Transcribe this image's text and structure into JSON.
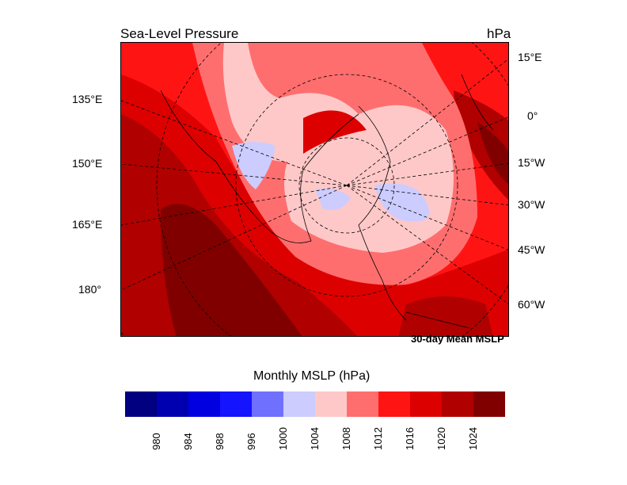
{
  "title_left": "Sea-Level Pressure",
  "title_right": "hPa",
  "annotation": "30-day Mean MSLP",
  "left_lon_labels": [
    "135°E",
    "150°E",
    "165°E",
    "180°"
  ],
  "right_lon_labels": [
    "15°E",
    "0°",
    "15°W",
    "30°W",
    "45°W",
    "60°W"
  ],
  "colorbar": {
    "title": "Monthly MSLP (hPa)",
    "labels": [
      "980",
      "984",
      "988",
      "996",
      "1000",
      "1004",
      "1008",
      "1012",
      "1016",
      "1020",
      "1024"
    ],
    "colors": [
      "#000080",
      "#0000b0",
      "#0000e0",
      "#1414ff",
      "#7070ff",
      "#ccccff",
      "#ffc8c8",
      "#ff6e6e",
      "#ff1414",
      "#dd0000",
      "#b00000",
      "#800000"
    ]
  }
}
